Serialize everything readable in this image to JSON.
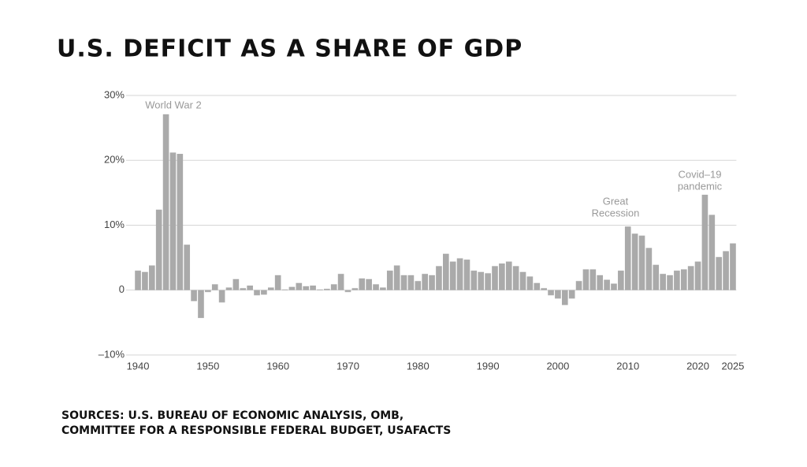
{
  "chart_data": {
    "type": "bar",
    "title": "U.S. DEFICIT AS A SHARE OF GDP",
    "source": [
      "SOURCES: U.S. BUREAU OF ECONOMIC ANALYSIS, OMB,",
      "COMMITTEE FOR A RESPONSIBLE FEDERAL BUDGET, USAFACTS"
    ],
    "annotations": [
      {
        "text": [
          "World War 2"
        ]
      },
      {
        "text": [
          "Great",
          "Recession"
        ]
      },
      {
        "text": [
          "Covid–19",
          "pandemic"
        ]
      }
    ],
    "x": [
      1940,
      1941,
      1942,
      1943,
      1944,
      1945,
      1946,
      1947,
      1948,
      1949,
      1950,
      1951,
      1952,
      1953,
      1954,
      1955,
      1956,
      1957,
      1958,
      1959,
      1960,
      1961,
      1962,
      1963,
      1964,
      1965,
      1966,
      1967,
      1968,
      1969,
      1970,
      1971,
      1972,
      1973,
      1974,
      1975,
      1976,
      1977,
      1978,
      1979,
      1980,
      1981,
      1982,
      1983,
      1984,
      1985,
      1986,
      1987,
      1988,
      1989,
      1990,
      1991,
      1992,
      1993,
      1994,
      1995,
      1996,
      1997,
      1998,
      1999,
      2000,
      2001,
      2002,
      2003,
      2004,
      2005,
      2006,
      2007,
      2008,
      2009,
      2010,
      2011,
      2012,
      2013,
      2014,
      2015,
      2016,
      2017,
      2018,
      2019,
      2020,
      2021,
      2022,
      2023,
      2024,
      2025
    ],
    "values": [
      3.0,
      2.8,
      3.8,
      12.4,
      27.1,
      21.2,
      21.0,
      7.0,
      -1.7,
      -4.3,
      -0.3,
      0.9,
      -1.9,
      0.4,
      1.7,
      0.3,
      0.7,
      -0.8,
      -0.7,
      0.4,
      2.3,
      0.1,
      0.5,
      1.1,
      0.6,
      0.7,
      0.1,
      0.2,
      0.9,
      2.5,
      -0.3,
      0.3,
      1.8,
      1.7,
      0.9,
      0.4,
      3.0,
      3.8,
      2.3,
      2.3,
      1.4,
      2.5,
      2.3,
      3.7,
      5.6,
      4.4,
      4.9,
      4.7,
      3.0,
      2.8,
      2.6,
      3.7,
      4.1,
      4.4,
      3.7,
      2.8,
      2.1,
      1.1,
      0.3,
      -0.8,
      -1.3,
      -2.3,
      -1.3,
      1.4,
      3.2,
      3.2,
      2.3,
      1.6,
      1.0,
      3.0,
      9.8,
      8.7,
      8.4,
      6.5,
      3.9,
      2.5,
      2.3,
      3.0,
      3.2,
      3.7,
      4.4,
      14.7,
      11.6,
      5.1,
      6.0,
      7.2
    ],
    "color": "#aaaaaa",
    "xlim": [
      1939.5,
      2025.5
    ],
    "xticks": [
      1940,
      1950,
      1960,
      1970,
      1980,
      1990,
      2000,
      2010,
      2020,
      2025
    ],
    "ylim": [
      -10,
      30
    ],
    "yticks": [
      {
        "value": 30,
        "label": "30%"
      },
      {
        "value": 20,
        "label": "20%"
      },
      {
        "value": 10,
        "label": "10%"
      },
      0,
      {
        "value": -10,
        "label": "–10%"
      }
    ],
    "grid": true
  }
}
